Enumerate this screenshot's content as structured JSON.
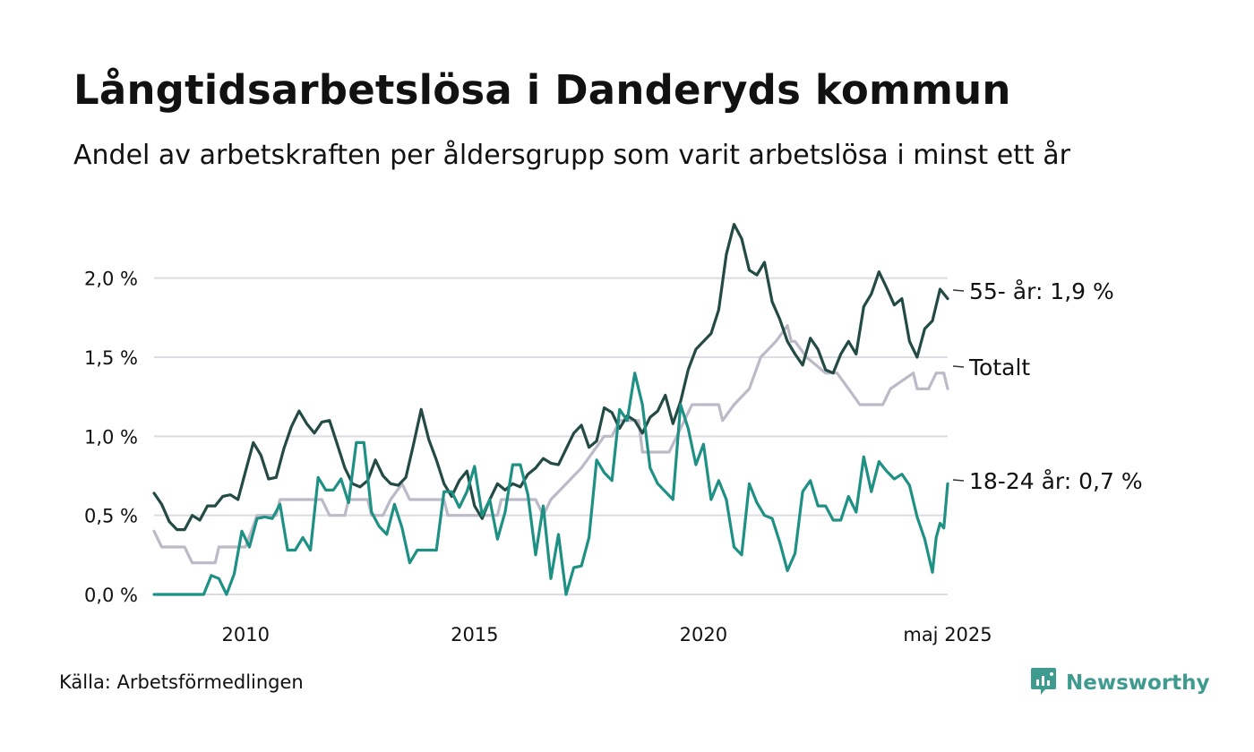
{
  "title": "Långtidsarbetslösa i Danderyds kommun",
  "subtitle": "Andel av arbetskraften per åldersgrupp som varit arbetslösa i minst ett år",
  "source": "Källa: Arbetsförmedlingen",
  "brand": {
    "name": "Newsworthy",
    "icon": "newsworthy-logo-icon",
    "color": "#3f9b90"
  },
  "chart_data": {
    "type": "line",
    "title": "Långtidsarbetslösa i Danderyds kommun",
    "subtitle": "Andel av arbetskraften per åldersgrupp som varit arbetslösa i minst ett år",
    "x_start": "2008-01",
    "x_end": "2025-05",
    "x_ticks": [
      {
        "date": "2010-01",
        "label": "2010"
      },
      {
        "date": "2015-01",
        "label": "2015"
      },
      {
        "date": "2020-01",
        "label": "2020"
      },
      {
        "date": "2025-05",
        "label": "maj 2025"
      }
    ],
    "ylim": [
      0,
      2.4
    ],
    "y_ticks": [
      {
        "value": 0,
        "label": "0,0 %"
      },
      {
        "value": 0.5,
        "label": "0,5 %"
      },
      {
        "value": 1,
        "label": "1,0 %"
      },
      {
        "value": 1.5,
        "label": "1,5 %"
      },
      {
        "value": 2,
        "label": "2,0 %"
      }
    ],
    "grid": true,
    "series": [
      {
        "name": "Totalt",
        "label": "Totalt",
        "color": "#bcbac8",
        "points": [
          [
            "2008-01",
            0.4
          ],
          [
            "2008-03",
            0.3
          ],
          [
            "2008-09",
            0.3
          ],
          [
            "2008-11",
            0.2
          ],
          [
            "2009-05",
            0.2
          ],
          [
            "2009-06",
            0.3
          ],
          [
            "2009-12",
            0.3
          ],
          [
            "2010-01",
            0.3
          ],
          [
            "2010-04",
            0.5
          ],
          [
            "2010-09",
            0.5
          ],
          [
            "2010-10",
            0.6
          ],
          [
            "2011-09",
            0.6
          ],
          [
            "2011-11",
            0.5
          ],
          [
            "2012-03",
            0.5
          ],
          [
            "2012-04",
            0.6
          ],
          [
            "2012-09",
            0.6
          ],
          [
            "2012-10",
            0.5
          ],
          [
            "2013-01",
            0.5
          ],
          [
            "2013-03",
            0.6
          ],
          [
            "2013-06",
            0.7
          ],
          [
            "2013-08",
            0.6
          ],
          [
            "2014-05",
            0.6
          ],
          [
            "2014-06",
            0.5
          ],
          [
            "2015-07",
            0.5
          ],
          [
            "2015-08",
            0.6
          ],
          [
            "2016-05",
            0.6
          ],
          [
            "2016-07",
            0.5
          ],
          [
            "2016-09",
            0.6
          ],
          [
            "2017-05",
            0.8
          ],
          [
            "2017-08",
            0.9
          ],
          [
            "2017-11",
            1.0
          ],
          [
            "2018-01",
            1.0
          ],
          [
            "2018-03",
            1.1
          ],
          [
            "2018-08",
            1.1
          ],
          [
            "2018-09",
            0.9
          ],
          [
            "2019-04",
            0.9
          ],
          [
            "2019-06",
            1.0
          ],
          [
            "2019-10",
            1.2
          ],
          [
            "2020-05",
            1.2
          ],
          [
            "2020-06",
            1.1
          ],
          [
            "2020-09",
            1.2
          ],
          [
            "2021-01",
            1.3
          ],
          [
            "2021-04",
            1.5
          ],
          [
            "2021-08",
            1.6
          ],
          [
            "2021-11",
            1.7
          ],
          [
            "2021-12",
            1.6
          ],
          [
            "2022-01",
            1.6
          ],
          [
            "2022-04",
            1.5
          ],
          [
            "2022-09",
            1.4
          ],
          [
            "2022-12",
            1.4
          ],
          [
            "2023-03",
            1.3
          ],
          [
            "2023-06",
            1.2
          ],
          [
            "2023-12",
            1.2
          ],
          [
            "2024-02",
            1.3
          ],
          [
            "2024-08",
            1.4
          ],
          [
            "2024-09",
            1.3
          ],
          [
            "2024-12",
            1.3
          ],
          [
            "2025-02",
            1.4
          ],
          [
            "2025-04",
            1.4
          ],
          [
            "2025-05",
            1.3
          ]
        ]
      },
      {
        "name": "55- år",
        "label": "55- år: 1,9 %",
        "color": "#234a44",
        "points": [
          [
            "2008-01",
            0.64
          ],
          [
            "2008-03",
            0.57
          ],
          [
            "2008-05",
            0.46
          ],
          [
            "2008-07",
            0.41
          ],
          [
            "2008-09",
            0.41
          ],
          [
            "2008-11",
            0.5
          ],
          [
            "2009-01",
            0.47
          ],
          [
            "2009-03",
            0.56
          ],
          [
            "2009-05",
            0.56
          ],
          [
            "2009-07",
            0.62
          ],
          [
            "2009-09",
            0.63
          ],
          [
            "2009-11",
            0.6
          ],
          [
            "2010-01",
            0.78
          ],
          [
            "2010-03",
            0.96
          ],
          [
            "2010-05",
            0.88
          ],
          [
            "2010-07",
            0.73
          ],
          [
            "2010-09",
            0.74
          ],
          [
            "2010-11",
            0.92
          ],
          [
            "2011-01",
            1.06
          ],
          [
            "2011-03",
            1.16
          ],
          [
            "2011-05",
            1.08
          ],
          [
            "2011-07",
            1.02
          ],
          [
            "2011-09",
            1.09
          ],
          [
            "2011-11",
            1.1
          ],
          [
            "2012-01",
            0.95
          ],
          [
            "2012-03",
            0.8
          ],
          [
            "2012-05",
            0.7
          ],
          [
            "2012-07",
            0.68
          ],
          [
            "2012-09",
            0.72
          ],
          [
            "2012-11",
            0.85
          ],
          [
            "2013-01",
            0.75
          ],
          [
            "2013-03",
            0.7
          ],
          [
            "2013-05",
            0.69
          ],
          [
            "2013-07",
            0.74
          ],
          [
            "2013-09",
            0.95
          ],
          [
            "2013-11",
            1.17
          ],
          [
            "2014-01",
            0.98
          ],
          [
            "2014-03",
            0.85
          ],
          [
            "2014-05",
            0.7
          ],
          [
            "2014-07",
            0.62
          ],
          [
            "2014-09",
            0.72
          ],
          [
            "2014-11",
            0.78
          ],
          [
            "2015-01",
            0.56
          ],
          [
            "2015-03",
            0.48
          ],
          [
            "2015-05",
            0.6
          ],
          [
            "2015-07",
            0.7
          ],
          [
            "2015-09",
            0.66
          ],
          [
            "2015-11",
            0.7
          ],
          [
            "2016-01",
            0.68
          ],
          [
            "2016-03",
            0.76
          ],
          [
            "2016-05",
            0.8
          ],
          [
            "2016-07",
            0.86
          ],
          [
            "2016-09",
            0.83
          ],
          [
            "2016-11",
            0.82
          ],
          [
            "2017-01",
            0.92
          ],
          [
            "2017-03",
            1.02
          ],
          [
            "2017-05",
            1.07
          ],
          [
            "2017-07",
            0.93
          ],
          [
            "2017-09",
            0.97
          ],
          [
            "2017-11",
            1.18
          ],
          [
            "2018-01",
            1.15
          ],
          [
            "2018-03",
            1.05
          ],
          [
            "2018-05",
            1.13
          ],
          [
            "2018-07",
            1.1
          ],
          [
            "2018-09",
            1.02
          ],
          [
            "2018-11",
            1.12
          ],
          [
            "2019-01",
            1.16
          ],
          [
            "2019-03",
            1.26
          ],
          [
            "2019-05",
            1.08
          ],
          [
            "2019-07",
            1.22
          ],
          [
            "2019-09",
            1.42
          ],
          [
            "2019-11",
            1.55
          ],
          [
            "2020-01",
            1.6
          ],
          [
            "2020-03",
            1.65
          ],
          [
            "2020-05",
            1.8
          ],
          [
            "2020-07",
            2.15
          ],
          [
            "2020-09",
            2.34
          ],
          [
            "2020-11",
            2.25
          ],
          [
            "2021-01",
            2.05
          ],
          [
            "2021-03",
            2.02
          ],
          [
            "2021-05",
            2.1
          ],
          [
            "2021-07",
            1.85
          ],
          [
            "2021-09",
            1.74
          ],
          [
            "2021-11",
            1.6
          ],
          [
            "2022-01",
            1.52
          ],
          [
            "2022-03",
            1.45
          ],
          [
            "2022-05",
            1.62
          ],
          [
            "2022-07",
            1.55
          ],
          [
            "2022-09",
            1.42
          ],
          [
            "2022-11",
            1.4
          ],
          [
            "2023-01",
            1.52
          ],
          [
            "2023-03",
            1.6
          ],
          [
            "2023-05",
            1.52
          ],
          [
            "2023-07",
            1.82
          ],
          [
            "2023-09",
            1.9
          ],
          [
            "2023-11",
            2.04
          ],
          [
            "2024-01",
            1.94
          ],
          [
            "2024-03",
            1.83
          ],
          [
            "2024-05",
            1.87
          ],
          [
            "2024-07",
            1.6
          ],
          [
            "2024-09",
            1.5
          ],
          [
            "2024-11",
            1.68
          ],
          [
            "2025-01",
            1.73
          ],
          [
            "2025-03",
            1.93
          ],
          [
            "2025-05",
            1.87
          ]
        ]
      },
      {
        "name": "18-24 år",
        "label": "18-24 år: 0,7 %",
        "color": "#1e9084",
        "points": [
          [
            "2008-01",
            0.0
          ],
          [
            "2009-02",
            0.0
          ],
          [
            "2009-04",
            0.12
          ],
          [
            "2009-06",
            0.1
          ],
          [
            "2009-08",
            0.0
          ],
          [
            "2009-10",
            0.13
          ],
          [
            "2009-12",
            0.4
          ],
          [
            "2010-02",
            0.3
          ],
          [
            "2010-04",
            0.48
          ],
          [
            "2010-06",
            0.49
          ],
          [
            "2010-08",
            0.48
          ],
          [
            "2010-10",
            0.57
          ],
          [
            "2010-12",
            0.28
          ],
          [
            "2011-02",
            0.28
          ],
          [
            "2011-04",
            0.36
          ],
          [
            "2011-06",
            0.28
          ],
          [
            "2011-08",
            0.74
          ],
          [
            "2011-10",
            0.66
          ],
          [
            "2011-12",
            0.66
          ],
          [
            "2012-02",
            0.73
          ],
          [
            "2012-04",
            0.58
          ],
          [
            "2012-06",
            0.96
          ],
          [
            "2012-08",
            0.96
          ],
          [
            "2012-10",
            0.52
          ],
          [
            "2012-12",
            0.43
          ],
          [
            "2013-02",
            0.38
          ],
          [
            "2013-04",
            0.57
          ],
          [
            "2013-06",
            0.42
          ],
          [
            "2013-08",
            0.2
          ],
          [
            "2013-10",
            0.28
          ],
          [
            "2013-12",
            0.28
          ],
          [
            "2014-03",
            0.28
          ],
          [
            "2014-05",
            0.65
          ],
          [
            "2014-07",
            0.65
          ],
          [
            "2014-09",
            0.55
          ],
          [
            "2014-11",
            0.65
          ],
          [
            "2015-01",
            0.81
          ],
          [
            "2015-03",
            0.5
          ],
          [
            "2015-05",
            0.6
          ],
          [
            "2015-07",
            0.35
          ],
          [
            "2015-09",
            0.52
          ],
          [
            "2015-11",
            0.82
          ],
          [
            "2016-01",
            0.82
          ],
          [
            "2016-03",
            0.63
          ],
          [
            "2016-05",
            0.25
          ],
          [
            "2016-07",
            0.56
          ],
          [
            "2016-09",
            0.1
          ],
          [
            "2016-11",
            0.38
          ],
          [
            "2017-01",
            0.0
          ],
          [
            "2017-03",
            0.17
          ],
          [
            "2017-05",
            0.18
          ],
          [
            "2017-07",
            0.36
          ],
          [
            "2017-09",
            0.85
          ],
          [
            "2017-11",
            0.77
          ],
          [
            "2018-01",
            0.72
          ],
          [
            "2018-03",
            1.17
          ],
          [
            "2018-05",
            1.1
          ],
          [
            "2018-07",
            1.4
          ],
          [
            "2018-09",
            1.2
          ],
          [
            "2018-11",
            0.8
          ],
          [
            "2019-01",
            0.7
          ],
          [
            "2019-03",
            0.65
          ],
          [
            "2019-05",
            0.6
          ],
          [
            "2019-07",
            1.2
          ],
          [
            "2019-09",
            1.05
          ],
          [
            "2019-11",
            0.82
          ],
          [
            "2020-01",
            0.95
          ],
          [
            "2020-03",
            0.6
          ],
          [
            "2020-05",
            0.72
          ],
          [
            "2020-07",
            0.6
          ],
          [
            "2020-09",
            0.3
          ],
          [
            "2020-11",
            0.25
          ],
          [
            "2021-01",
            0.7
          ],
          [
            "2021-03",
            0.58
          ],
          [
            "2021-05",
            0.5
          ],
          [
            "2021-07",
            0.48
          ],
          [
            "2021-09",
            0.33
          ],
          [
            "2021-11",
            0.15
          ],
          [
            "2022-01",
            0.26
          ],
          [
            "2022-03",
            0.65
          ],
          [
            "2022-05",
            0.72
          ],
          [
            "2022-07",
            0.56
          ],
          [
            "2022-09",
            0.56
          ],
          [
            "2022-11",
            0.47
          ],
          [
            "2023-01",
            0.47
          ],
          [
            "2023-03",
            0.62
          ],
          [
            "2023-05",
            0.52
          ],
          [
            "2023-07",
            0.87
          ],
          [
            "2023-09",
            0.65
          ],
          [
            "2023-11",
            0.84
          ],
          [
            "2024-01",
            0.78
          ],
          [
            "2024-03",
            0.73
          ],
          [
            "2024-05",
            0.76
          ],
          [
            "2024-07",
            0.69
          ],
          [
            "2024-09",
            0.49
          ],
          [
            "2024-11",
            0.35
          ],
          [
            "2025-01",
            0.14
          ],
          [
            "2025-02",
            0.36
          ],
          [
            "2025-03",
            0.45
          ],
          [
            "2025-04",
            0.42
          ],
          [
            "2025-05",
            0.7
          ]
        ]
      }
    ]
  }
}
